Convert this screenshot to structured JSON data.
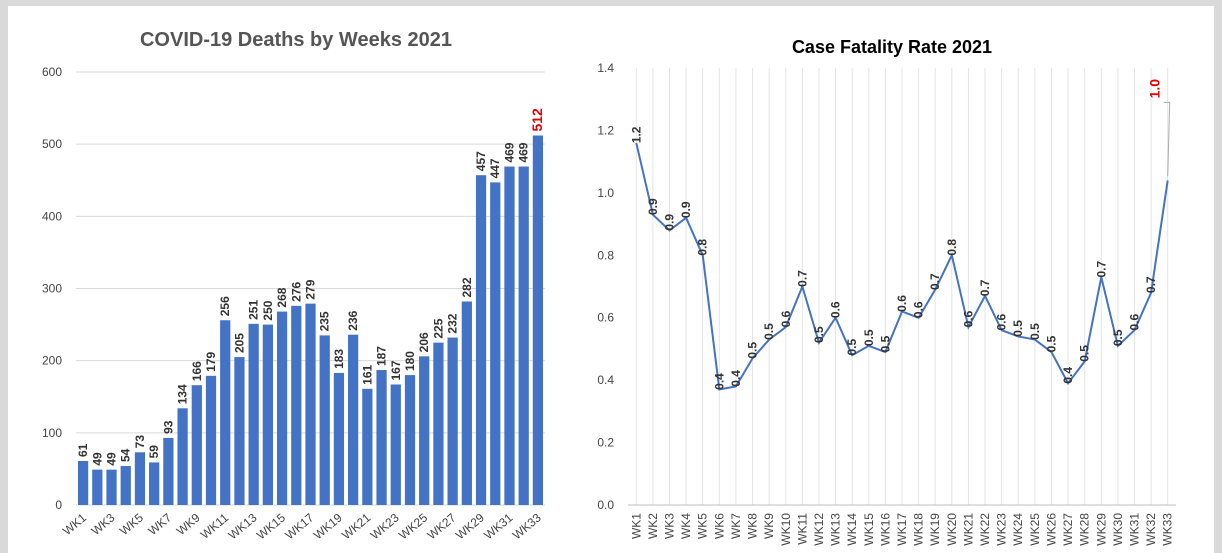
{
  "chart_data": [
    {
      "type": "bar",
      "title": "COVID-19 Deaths by Weeks 2021",
      "categories": [
        "WK1",
        null,
        "WK3",
        null,
        "WK5",
        null,
        "WK7",
        null,
        "WK9",
        null,
        "WK11",
        null,
        "WK13",
        null,
        "WK15",
        null,
        "WK17",
        null,
        "WK19",
        null,
        "WK21",
        null,
        "WK23",
        null,
        "WK25",
        null,
        "WK27",
        null,
        "WK29",
        null,
        "WK31",
        null,
        "WK33"
      ],
      "values": [
        61,
        49,
        49,
        54,
        73,
        59,
        93,
        134,
        166,
        179,
        256,
        205,
        251,
        250,
        268,
        276,
        279,
        235,
        183,
        236,
        161,
        187,
        167,
        180,
        206,
        225,
        232,
        282,
        457,
        447,
        469,
        469,
        512
      ],
      "color": "#4472c4",
      "label_colors": [
        "#333",
        "#333",
        "#333",
        "#333",
        "#333",
        "#333",
        "#333",
        "#333",
        "#333",
        "#333",
        "#333",
        "#333",
        "#333",
        "#333",
        "#333",
        "#333",
        "#333",
        "#333",
        "#333",
        "#333",
        "#333",
        "#333",
        "#333",
        "#333",
        "#333",
        "#333",
        "#333",
        "#333",
        "#333",
        "#333",
        "#333",
        "#333",
        "#e00000"
      ],
      "ylim": [
        0,
        600
      ],
      "yticks": [
        0,
        100,
        200,
        300,
        400,
        500,
        600
      ],
      "grid": "y"
    },
    {
      "type": "line",
      "title": "Case Fatality Rate 2021",
      "categories": [
        "WK1",
        "WK2",
        "WK3",
        "WK4",
        "WK5",
        "WK6",
        "WK7",
        "WK8",
        "WK9",
        "WK10",
        "WK11",
        "WK12",
        "WK13",
        "WK14",
        "WK15",
        "WK16",
        "WK17",
        "WK18",
        "WK19",
        "WK20",
        "WK21",
        "WK22",
        "WK23",
        "WK24",
        "WK25",
        "WK26",
        "WK27",
        "WK28",
        "WK29",
        "WK30",
        "WK31",
        "WK32",
        "WK33"
      ],
      "values": [
        1.16,
        0.93,
        0.88,
        0.92,
        0.8,
        0.37,
        0.38,
        0.47,
        0.53,
        0.57,
        0.7,
        0.52,
        0.6,
        0.48,
        0.51,
        0.49,
        0.62,
        0.6,
        0.69,
        0.8,
        0.57,
        0.67,
        0.56,
        0.54,
        0.53,
        0.49,
        0.39,
        0.46,
        0.73,
        0.51,
        0.56,
        0.68,
        1.04
      ],
      "value_labels": [
        "1.2",
        "0.9",
        "0.9",
        "0.9",
        "0.8",
        "0.4",
        "0.4",
        "0.5",
        "0.5",
        "0.6",
        "0.7",
        "0.5",
        "0.6",
        "0.5",
        "0.5",
        "0.5",
        "0.6",
        "0.6",
        "0.7",
        "0.8",
        "0.6",
        "0.7",
        "0.6",
        "0.5",
        "0.5",
        "0.5",
        "0.4",
        "0.5",
        "0.7",
        "0.5",
        "0.6",
        "0.7",
        "1.0"
      ],
      "color": "#4472c4",
      "label_colors": [
        "#333",
        "#333",
        "#333",
        "#333",
        "#333",
        "#333",
        "#333",
        "#333",
        "#333",
        "#333",
        "#333",
        "#333",
        "#333",
        "#333",
        "#333",
        "#333",
        "#333",
        "#333",
        "#333",
        "#333",
        "#333",
        "#333",
        "#333",
        "#333",
        "#333",
        "#333",
        "#333",
        "#333",
        "#333",
        "#333",
        "#333",
        "#333",
        "#e00000"
      ],
      "ylim": [
        0,
        1.4
      ],
      "yticks": [
        {
          "value": 0,
          "label": "0.0"
        },
        0.2,
        0.4,
        0.6,
        0.8,
        {
          "value": 1,
          "label": "1.0"
        },
        1.2,
        1.4
      ],
      "grid": "x"
    }
  ]
}
